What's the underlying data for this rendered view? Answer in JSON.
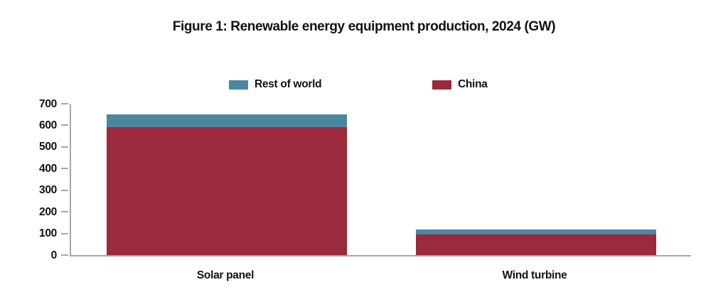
{
  "chart_data": {
    "type": "bar",
    "stacked": true,
    "title": "Figure 1: Renewable energy equipment production, 2024 (GW)",
    "categories": [
      "Solar panel",
      "Wind turbine"
    ],
    "series": [
      {
        "name": "China",
        "color": "#9a2a3c",
        "values": [
          590,
          95
        ]
      },
      {
        "name": "Rest of world",
        "color": "#4a87a0",
        "values": [
          60,
          25
        ]
      }
    ],
    "totals": [
      650,
      120
    ],
    "xlabel": "",
    "ylabel": "",
    "ylim": [
      0,
      700
    ],
    "yticks": [
      0,
      100,
      200,
      300,
      400,
      500,
      600,
      700
    ],
    "grid": false,
    "legend_position": "top",
    "legend_order": [
      "Rest of world",
      "China"
    ],
    "axis_color": "#a6a6a6",
    "text_color": "#121212",
    "background_color": "#ffffff"
  }
}
